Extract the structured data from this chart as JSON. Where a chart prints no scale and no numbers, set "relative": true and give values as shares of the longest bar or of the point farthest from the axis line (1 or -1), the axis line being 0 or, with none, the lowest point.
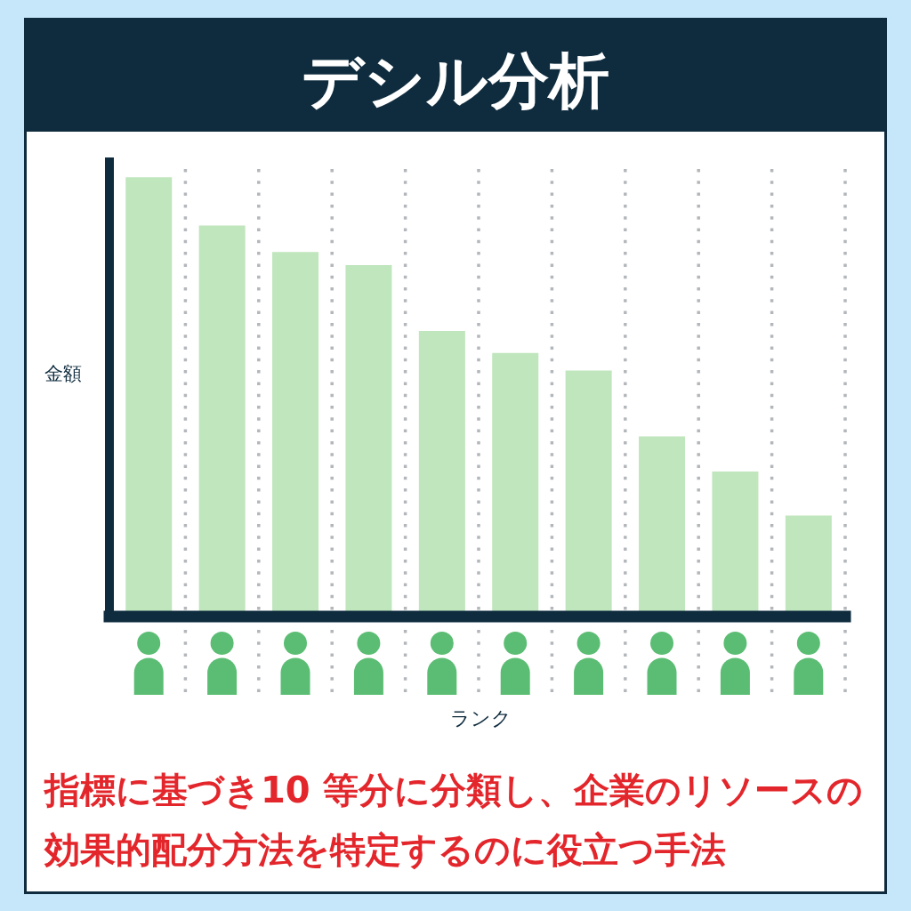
{
  "chart_data": {
    "type": "bar",
    "title": "デシル分析",
    "xlabel": "ランク",
    "ylabel": "金額",
    "categories": [
      null,
      null,
      null,
      null,
      null,
      null,
      null,
      null,
      null,
      null
    ],
    "values": [
      1,
      0.89,
      0.83,
      0.8,
      0.65,
      0.6,
      0.56,
      0.41,
      0.33,
      0.23
    ],
    "color": "#bfe6bc",
    "relative": true,
    "grid": "x",
    "annotations": [
      "指標に基づき10 等分に分類し、企業のリソースの効果的配分方法を特定するのに役立つ手法"
    ]
  }
}
